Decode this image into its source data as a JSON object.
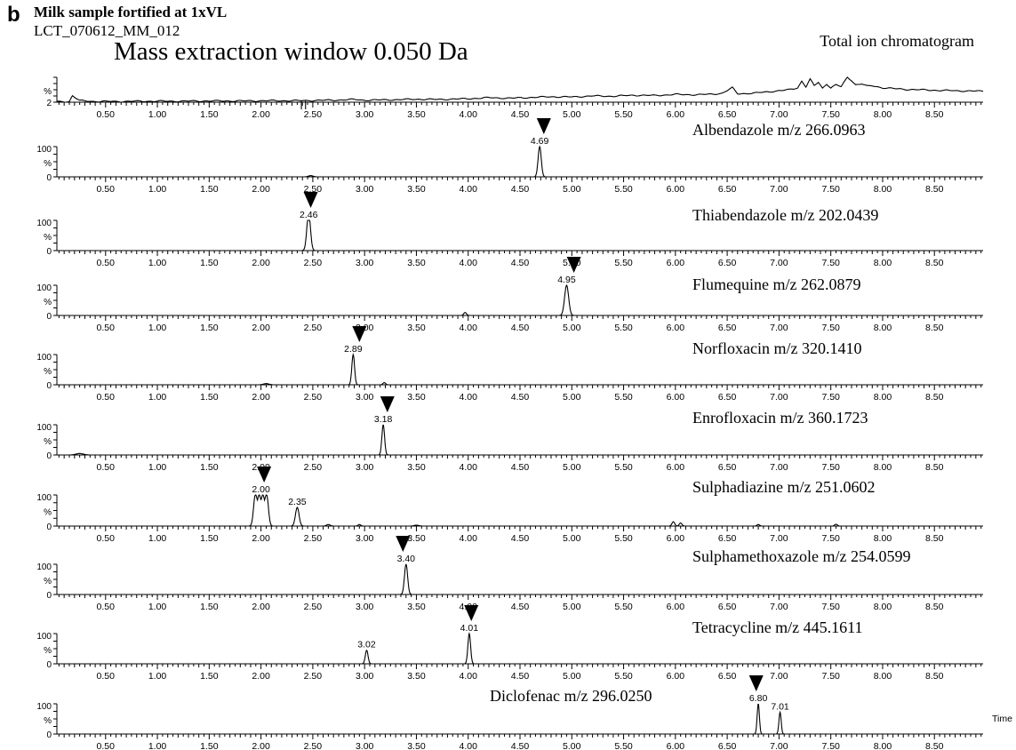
{
  "figure": {
    "panel_letter": "b",
    "subtitle": "Milk sample fortified at 1xVL",
    "sample_id": "LCT_070612_MM_012",
    "extraction_window": "Mass extraction window 0.050 Da",
    "x_axis_title": "Time"
  },
  "chart_data": {
    "type": "line",
    "x_ticks": [
      "0.50",
      "1.00",
      "1.50",
      "2.00",
      "2.50",
      "3.00",
      "3.50",
      "4.00",
      "4.50",
      "5.00",
      "5.50",
      "6.00",
      "6.50",
      "7.00",
      "7.50",
      "8.00",
      "8.50"
    ],
    "xlim": [
      0.03,
      8.97
    ],
    "xlabel": "Time",
    "ylabel": "%",
    "panels": [
      {
        "name": "Total ion chromatogram",
        "y_top": "",
        "y_bottom": "2",
        "ylim": [
          0,
          100
        ],
        "arrows": [],
        "peaks": [],
        "baseline": [
          [
            0.03,
            2
          ],
          [
            0.15,
            3
          ],
          [
            0.18,
            26
          ],
          [
            0.25,
            6
          ],
          [
            0.4,
            3
          ],
          [
            0.6,
            3
          ],
          [
            0.9,
            4
          ],
          [
            1.2,
            4
          ],
          [
            1.5,
            5
          ],
          [
            1.8,
            5
          ],
          [
            2.1,
            6
          ],
          [
            2.35,
            6
          ],
          [
            2.5,
            7
          ],
          [
            2.7,
            8
          ],
          [
            2.9,
            11
          ],
          [
            3.0,
            8
          ],
          [
            3.3,
            10
          ],
          [
            3.5,
            12
          ],
          [
            3.7,
            11
          ],
          [
            4.0,
            14
          ],
          [
            4.2,
            18
          ],
          [
            4.4,
            16
          ],
          [
            4.6,
            19
          ],
          [
            4.8,
            22
          ],
          [
            5.0,
            21
          ],
          [
            5.2,
            25
          ],
          [
            5.4,
            24
          ],
          [
            5.6,
            28
          ],
          [
            5.8,
            27
          ],
          [
            6.0,
            31
          ],
          [
            6.2,
            30
          ],
          [
            6.35,
            32
          ],
          [
            6.45,
            36
          ],
          [
            6.55,
            58
          ],
          [
            6.6,
            34
          ],
          [
            6.75,
            36
          ],
          [
            6.9,
            42
          ],
          [
            7.0,
            46
          ],
          [
            7.1,
            50
          ],
          [
            7.18,
            58
          ],
          [
            7.22,
            85
          ],
          [
            7.26,
            62
          ],
          [
            7.3,
            92
          ],
          [
            7.34,
            66
          ],
          [
            7.38,
            80
          ],
          [
            7.42,
            56
          ],
          [
            7.46,
            74
          ],
          [
            7.5,
            58
          ],
          [
            7.55,
            70
          ],
          [
            7.6,
            62
          ],
          [
            7.66,
            100
          ],
          [
            7.7,
            88
          ],
          [
            7.74,
            70
          ],
          [
            7.8,
            74
          ],
          [
            7.85,
            64
          ],
          [
            7.9,
            66
          ],
          [
            8.0,
            58
          ],
          [
            8.1,
            55
          ],
          [
            8.2,
            52
          ],
          [
            8.35,
            50
          ],
          [
            8.5,
            48
          ],
          [
            8.7,
            46
          ],
          [
            8.97,
            44
          ]
        ],
        "dips": [
          2.39,
          2.43
        ]
      },
      {
        "name": "Albendazole m/z 266.0963",
        "y_top": "100",
        "y_bottom": "0",
        "ylim": [
          0,
          100
        ],
        "arrows": [
          4.73
        ],
        "peaks": [
          {
            "rt": 4.69,
            "height": 100,
            "width": 0.035,
            "label": "4.69"
          }
        ],
        "minor": [
          {
            "rt": 2.48,
            "height": 4,
            "width": 0.05
          }
        ]
      },
      {
        "name": "Thiabendazole m/z  202.0439",
        "y_top": "100",
        "y_bottom": "0",
        "ylim": [
          0,
          100
        ],
        "arrows": [
          2.48
        ],
        "peaks": [
          {
            "rt": 2.46,
            "height": 100,
            "width": 0.04,
            "label": "2.46",
            "flat": true
          }
        ],
        "minor": []
      },
      {
        "name": "Flumequine m/z 262.0879",
        "y_top": "100",
        "y_bottom": "0",
        "ylim": [
          0,
          100
        ],
        "arrows": [
          5.02
        ],
        "peaks": [
          {
            "rt": 4.95,
            "height": 100,
            "width": 0.045,
            "label": "4.95"
          }
        ],
        "minor": [
          {
            "rt": 3.97,
            "height": 10,
            "width": 0.03
          }
        ]
      },
      {
        "name": "Norfloxacin m/z 320.1410",
        "y_top": "100",
        "y_bottom": "0",
        "ylim": [
          0,
          100
        ],
        "arrows": [
          2.95
        ],
        "peaks": [
          {
            "rt": 2.89,
            "height": 100,
            "width": 0.03,
            "label": "2.89"
          }
        ],
        "minor": [
          {
            "rt": 2.05,
            "height": 4,
            "width": 0.06
          },
          {
            "rt": 3.19,
            "height": 7,
            "width": 0.03
          }
        ]
      },
      {
        "name": "Enrofloxacin m/z 360.1723",
        "y_top": "100",
        "y_bottom": "0",
        "ylim": [
          0,
          100
        ],
        "arrows": [
          3.22
        ],
        "peaks": [
          {
            "rt": 3.18,
            "height": 100,
            "width": 0.03,
            "label": "3.18"
          }
        ],
        "minor": [
          {
            "rt": 0.25,
            "height": 5,
            "width": 0.08
          }
        ]
      },
      {
        "name": "Sulphadiazine m/z 251.0602",
        "y_top": "100",
        "y_bottom": "0",
        "ylim": [
          0,
          100
        ],
        "arrows": [
          2.03
        ],
        "peaks": [
          {
            "rt": 2.0,
            "height": 100,
            "width": 0.05,
            "label": "2.00",
            "jagged": true
          },
          {
            "rt": 2.35,
            "height": 60,
            "width": 0.04,
            "label": "2.35"
          }
        ],
        "minor": [
          {
            "rt": 2.65,
            "height": 5,
            "width": 0.04
          },
          {
            "rt": 2.95,
            "height": 5,
            "width": 0.03
          },
          {
            "rt": 3.5,
            "height": 3,
            "width": 0.05
          },
          {
            "rt": 5.98,
            "height": 14,
            "width": 0.03
          },
          {
            "rt": 6.05,
            "height": 10,
            "width": 0.03
          },
          {
            "rt": 6.8,
            "height": 5,
            "width": 0.03
          },
          {
            "rt": 7.55,
            "height": 6,
            "width": 0.03
          }
        ]
      },
      {
        "name": "Sulphamethoxazole m/z 254.0599",
        "y_top": "100",
        "y_bottom": "0",
        "ylim": [
          0,
          100
        ],
        "arrows": [
          3.37
        ],
        "peaks": [
          {
            "rt": 3.4,
            "height": 100,
            "width": 0.035,
            "label": "3.40"
          }
        ],
        "minor": []
      },
      {
        "name": "Tetracycline m/z 445.1611",
        "y_top": "100",
        "y_bottom": "0",
        "ylim": [
          0,
          100
        ],
        "arrows": [
          4.03
        ],
        "peaks": [
          {
            "rt": 3.02,
            "height": 45,
            "width": 0.03,
            "label": "3.02"
          },
          {
            "rt": 4.01,
            "height": 100,
            "width": 0.03,
            "label": "4.01"
          }
        ],
        "minor": []
      },
      {
        "name": "Diclofenac m/z 296.0250",
        "y_top": "100",
        "y_bottom": "0",
        "ylim": [
          0,
          100
        ],
        "arrows": [
          6.78
        ],
        "peaks": [
          {
            "rt": 6.8,
            "height": 100,
            "width": 0.025,
            "label": "6.80"
          },
          {
            "rt": 7.01,
            "height": 72,
            "width": 0.025,
            "label": "7.01"
          }
        ],
        "minor": []
      }
    ]
  }
}
